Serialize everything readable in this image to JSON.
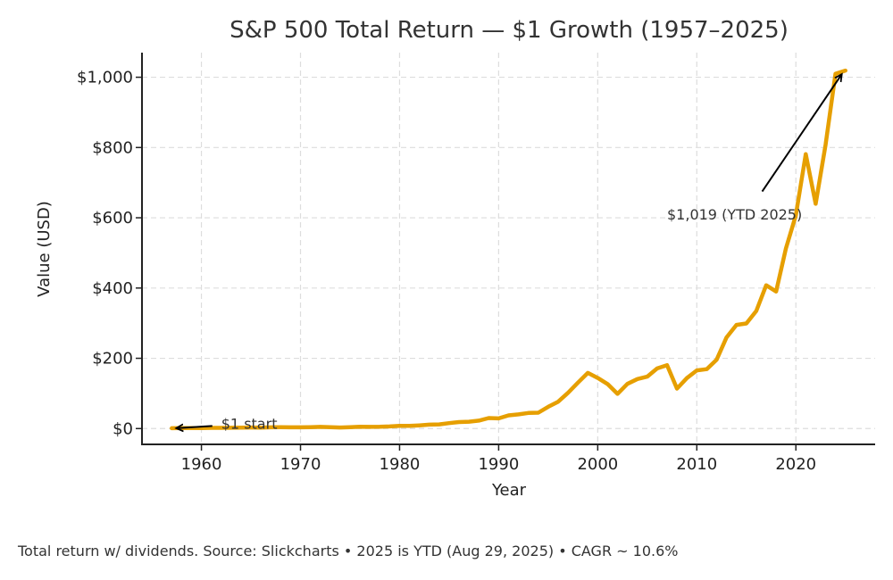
{
  "chart_data": {
    "type": "line",
    "title": "S&P 500 Total Return — $1 Growth (1957–2025)",
    "xlabel": "Year",
    "ylabel": "Value (USD)",
    "xlim": [
      1954,
      2028
    ],
    "ylim": [
      -45,
      1070
    ],
    "xticks": [
      1960,
      1970,
      1980,
      1990,
      2000,
      2010,
      2020
    ],
    "yticks": [
      0,
      200,
      400,
      600,
      800,
      1000
    ],
    "ytick_labels": [
      "$0",
      "$200",
      "$400",
      "$600",
      "$800",
      "$1,000"
    ],
    "grid": true,
    "series_color": "#E69F00",
    "series": [
      {
        "x": [
          1957,
          1958,
          1959,
          1960,
          1961,
          1962,
          1963,
          1964,
          1965,
          1966,
          1967,
          1968,
          1969,
          1970,
          1971,
          1972,
          1973,
          1974,
          1975,
          1976,
          1977,
          1978,
          1979,
          1980,
          1981,
          1982,
          1983,
          1984,
          1985,
          1986,
          1987,
          1988,
          1989,
          1990,
          1991,
          1992,
          1993,
          1994,
          1995,
          1996,
          1997,
          1998,
          1999,
          2000,
          2001,
          2002,
          2003,
          2004,
          2005,
          2006,
          2007,
          2008,
          2009,
          2010,
          2011,
          2012,
          2013,
          2014,
          2015,
          2016,
          2017,
          2018,
          2019,
          2020,
          2021,
          2022,
          2023,
          2024,
          2025
        ],
        "y": [
          1,
          1.4,
          1.6,
          1.6,
          2.1,
          1.9,
          2.3,
          2.7,
          3.0,
          2.7,
          3.4,
          3.7,
          3.4,
          3.5,
          4.0,
          4.8,
          4.1,
          3.0,
          4.1,
          5.1,
          4.7,
          5.0,
          6.0,
          7.9,
          7.5,
          9.1,
          11.1,
          11.8,
          15.5,
          18.4,
          19.4,
          22.6,
          29.8,
          28.8,
          37.5,
          40.4,
          44.5,
          45.1,
          62.0,
          76.3,
          101.7,
          130.8,
          158.4,
          144.0,
          126.8,
          98.8,
          127.1,
          140.9,
          147.8,
          171.1,
          180.5,
          113.7,
          143.8,
          165.5,
          169.0,
          196.0,
          259.5,
          295.0,
          299.1,
          334.8,
          407.9,
          390.0,
          512.8,
          607.0,
          781.2,
          639.7,
          807.8,
          1010.0,
          1019.0
        ]
      }
    ],
    "annotations": [
      {
        "text": "$1 start",
        "x": 1962,
        "y": 15,
        "target_x": 1957,
        "target_y": 1
      },
      {
        "text": "$1,019 (YTD 2025)",
        "x": 2007,
        "y": 610,
        "target_x": 2025,
        "target_y": 1019
      }
    ]
  },
  "footer": "Total return w/ dividends. Source: Slickcharts • 2025 is YTD (Aug 29, 2025) • CAGR ~ 10.6%"
}
